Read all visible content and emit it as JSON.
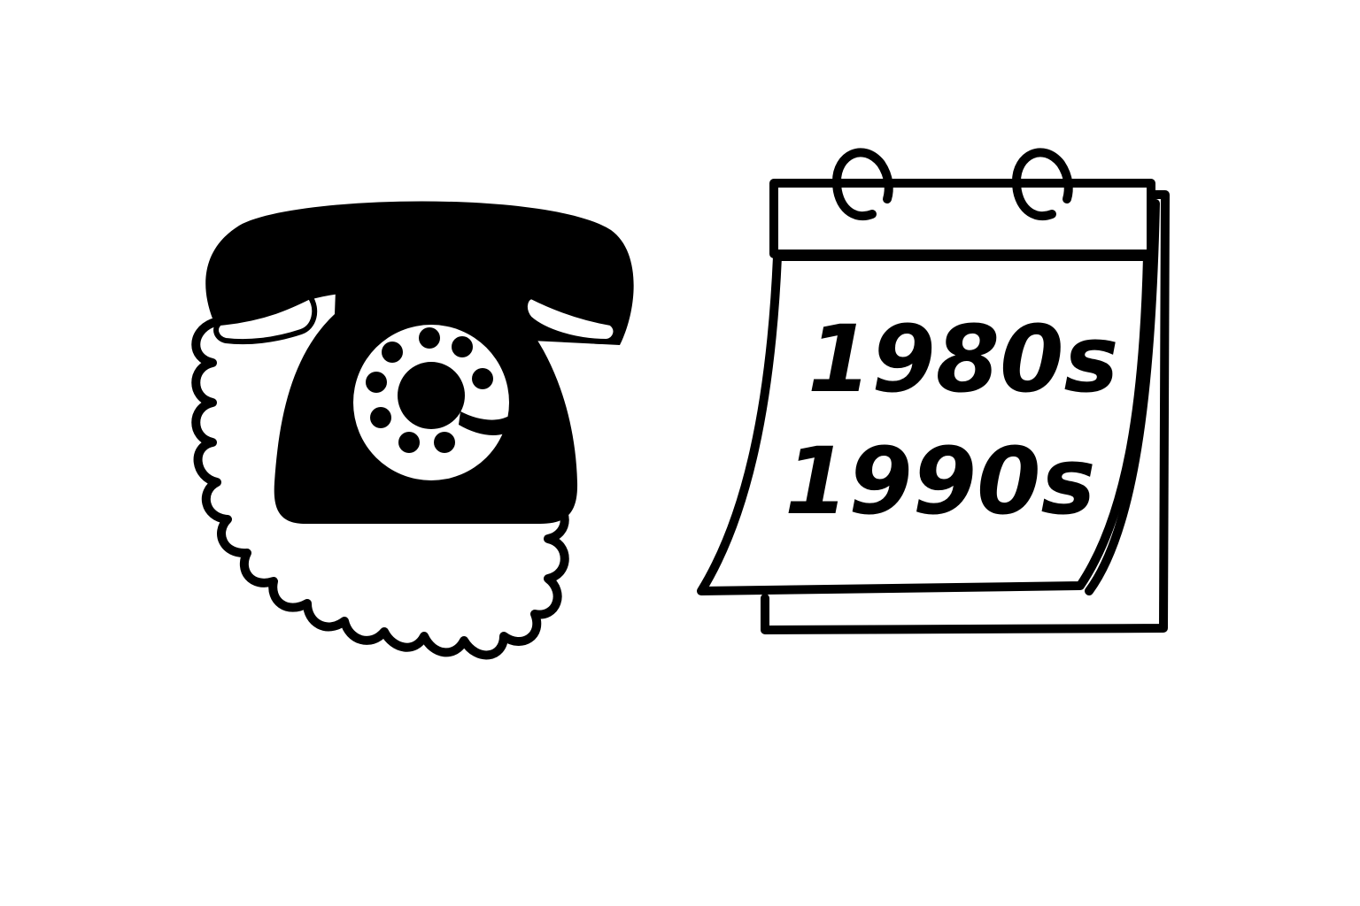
{
  "calendar": {
    "lines": [
      "1980s",
      "1990s"
    ]
  }
}
